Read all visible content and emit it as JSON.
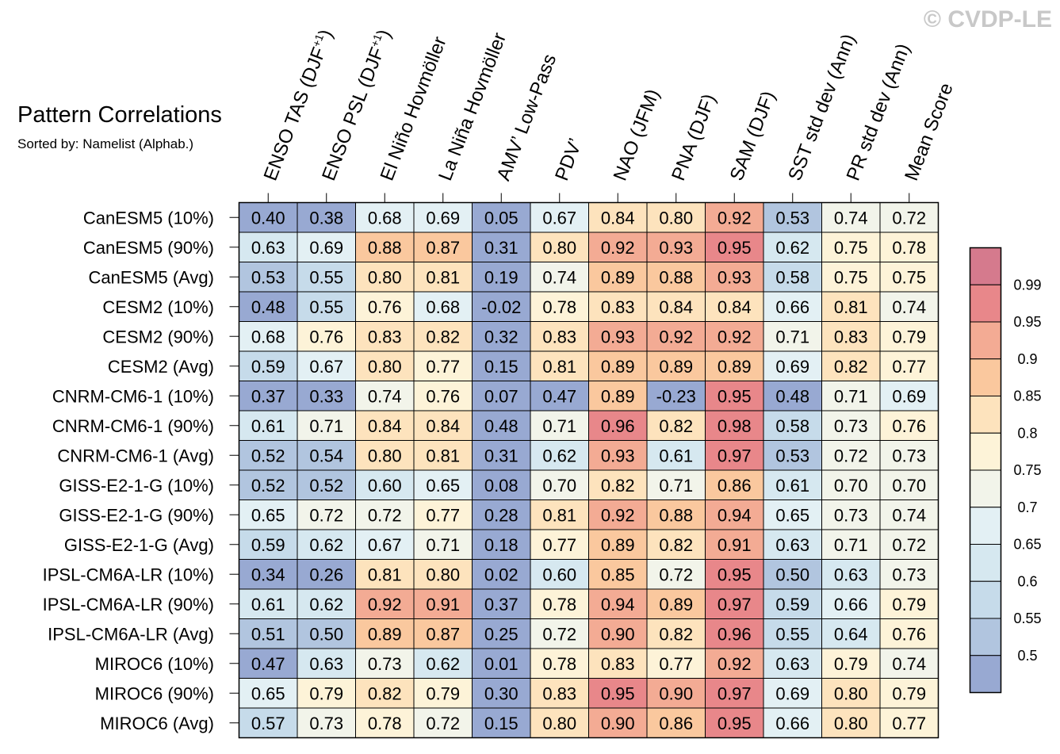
{
  "watermark": "© CVDP-LE",
  "chart_data": {
    "type": "heatmap",
    "title": "Pattern Correlations",
    "subtitle": "Sorted by: Namelist (Alphab.)",
    "columns": [
      {
        "base": "ENSO TAS (DJF",
        "sup": "+1",
        "tail": ")"
      },
      {
        "base": "ENSO PSL (DJF",
        "sup": "+1",
        "tail": ")"
      },
      {
        "base": "El Niño Hovmöller",
        "sup": "",
        "tail": ""
      },
      {
        "base": "La Niña Hovmöller",
        "sup": "",
        "tail": ""
      },
      {
        "base": "AMV’ Low-Pass",
        "sup": "",
        "tail": ""
      },
      {
        "base": "PDV’",
        "sup": "",
        "tail": ""
      },
      {
        "base": "NAO (JFM)",
        "sup": "",
        "tail": ""
      },
      {
        "base": "PNA (DJF)",
        "sup": "",
        "tail": ""
      },
      {
        "base": "SAM (DJF)",
        "sup": "",
        "tail": ""
      },
      {
        "base": "SST std dev (Ann)",
        "sup": "",
        "tail": ""
      },
      {
        "base": "PR std dev (Ann)",
        "sup": "",
        "tail": ""
      },
      {
        "base": "Mean Score",
        "sup": "",
        "tail": ""
      }
    ],
    "rows": [
      "CanESM5 (10%)",
      "CanESM5 (90%)",
      "CanESM5 (Avg)",
      "CESM2 (10%)",
      "CESM2 (90%)",
      "CESM2 (Avg)",
      "CNRM-CM6-1 (10%)",
      "CNRM-CM6-1 (90%)",
      "CNRM-CM6-1 (Avg)",
      "GISS-E2-1-G (10%)",
      "GISS-E2-1-G (90%)",
      "GISS-E2-1-G (Avg)",
      "IPSL-CM6A-LR (10%)",
      "IPSL-CM6A-LR (90%)",
      "IPSL-CM6A-LR (Avg)",
      "MIROC6 (10%)",
      "MIROC6 (90%)",
      "MIROC6 (Avg)"
    ],
    "values": [
      [
        "0.40",
        "0.38",
        "0.68",
        "0.69",
        "0.05",
        "0.67",
        "0.84",
        "0.80",
        "0.92",
        "0.53",
        "0.74",
        "0.72"
      ],
      [
        "0.63",
        "0.69",
        "0.88",
        "0.87",
        "0.31",
        "0.80",
        "0.92",
        "0.93",
        "0.95",
        "0.62",
        "0.75",
        "0.78"
      ],
      [
        "0.53",
        "0.55",
        "0.80",
        "0.81",
        "0.19",
        "0.74",
        "0.89",
        "0.88",
        "0.93",
        "0.58",
        "0.75",
        "0.75"
      ],
      [
        "0.48",
        "0.55",
        "0.76",
        "0.68",
        "-0.02",
        "0.78",
        "0.83",
        "0.84",
        "0.84",
        "0.66",
        "0.81",
        "0.74"
      ],
      [
        "0.68",
        "0.76",
        "0.83",
        "0.82",
        "0.32",
        "0.83",
        "0.93",
        "0.92",
        "0.92",
        "0.71",
        "0.83",
        "0.79"
      ],
      [
        "0.59",
        "0.67",
        "0.80",
        "0.77",
        "0.15",
        "0.81",
        "0.89",
        "0.89",
        "0.89",
        "0.69",
        "0.82",
        "0.77"
      ],
      [
        "0.37",
        "0.33",
        "0.74",
        "0.76",
        "0.07",
        "0.47",
        "0.89",
        "-0.23",
        "0.95",
        "0.48",
        "0.71",
        "0.69"
      ],
      [
        "0.61",
        "0.71",
        "0.84",
        "0.84",
        "0.48",
        "0.71",
        "0.96",
        "0.82",
        "0.98",
        "0.58",
        "0.73",
        "0.76"
      ],
      [
        "0.52",
        "0.54",
        "0.80",
        "0.81",
        "0.31",
        "0.62",
        "0.93",
        "0.61",
        "0.97",
        "0.53",
        "0.72",
        "0.73"
      ],
      [
        "0.52",
        "0.52",
        "0.60",
        "0.65",
        "0.08",
        "0.70",
        "0.82",
        "0.71",
        "0.86",
        "0.61",
        "0.70",
        "0.70"
      ],
      [
        "0.65",
        "0.72",
        "0.72",
        "0.77",
        "0.28",
        "0.81",
        "0.92",
        "0.88",
        "0.94",
        "0.65",
        "0.73",
        "0.74"
      ],
      [
        "0.59",
        "0.62",
        "0.67",
        "0.71",
        "0.18",
        "0.77",
        "0.89",
        "0.82",
        "0.91",
        "0.63",
        "0.71",
        "0.72"
      ],
      [
        "0.34",
        "0.26",
        "0.81",
        "0.80",
        "0.02",
        "0.60",
        "0.85",
        "0.72",
        "0.95",
        "0.50",
        "0.63",
        "0.73"
      ],
      [
        "0.61",
        "0.62",
        "0.92",
        "0.91",
        "0.37",
        "0.78",
        "0.94",
        "0.89",
        "0.97",
        "0.59",
        "0.66",
        "0.79"
      ],
      [
        "0.51",
        "0.50",
        "0.89",
        "0.87",
        "0.25",
        "0.72",
        "0.90",
        "0.82",
        "0.96",
        "0.55",
        "0.64",
        "0.76"
      ],
      [
        "0.47",
        "0.63",
        "0.73",
        "0.62",
        "0.01",
        "0.78",
        "0.83",
        "0.77",
        "0.92",
        "0.63",
        "0.79",
        "0.74"
      ],
      [
        "0.65",
        "0.79",
        "0.82",
        "0.79",
        "0.30",
        "0.83",
        "0.95",
        "0.90",
        "0.97",
        "0.69",
        "0.80",
        "0.79"
      ],
      [
        "0.57",
        "0.73",
        "0.78",
        "0.72",
        "0.15",
        "0.80",
        "0.90",
        "0.86",
        "0.95",
        "0.66",
        "0.80",
        "0.77"
      ]
    ],
    "colorbar": {
      "labels": [
        "0.99",
        "0.95",
        "0.9",
        "0.85",
        "0.8",
        "0.75",
        "0.7",
        "0.65",
        "0.6",
        "0.55",
        "0.5"
      ],
      "levels": [
        0.5,
        0.55,
        0.6,
        0.65,
        0.7,
        0.75,
        0.8,
        0.85,
        0.9,
        0.95,
        0.99
      ],
      "colors": [
        "#98a9d2",
        "#b1c5df",
        "#c6dbea",
        "#d6e8f0",
        "#e3f0f4",
        "#f2f4ea",
        "#fdf3d8",
        "#fde3bd",
        "#fac89e",
        "#f3ab94",
        "#e8878a",
        "#d57a8d"
      ]
    }
  }
}
